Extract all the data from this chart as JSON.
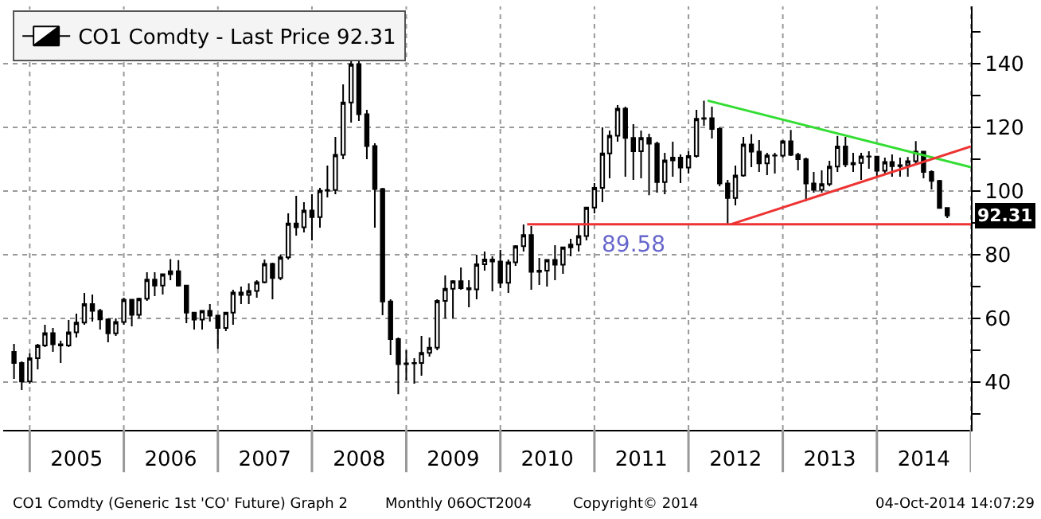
{
  "chart_data": {
    "type": "candlestick",
    "x": [
      "2004-11",
      "2004-12",
      "2005-01",
      "2005-02",
      "2005-03",
      "2005-04",
      "2005-05",
      "2005-06",
      "2005-07",
      "2005-08",
      "2005-09",
      "2005-10",
      "2005-11",
      "2005-12",
      "2006-01",
      "2006-02",
      "2006-03",
      "2006-04",
      "2006-05",
      "2006-06",
      "2006-07",
      "2006-08",
      "2006-09",
      "2006-10",
      "2006-11",
      "2006-12",
      "2007-01",
      "2007-02",
      "2007-03",
      "2007-04",
      "2007-05",
      "2007-06",
      "2007-07",
      "2007-08",
      "2007-09",
      "2007-10",
      "2007-11",
      "2007-12",
      "2008-01",
      "2008-02",
      "2008-03",
      "2008-04",
      "2008-05",
      "2008-06",
      "2008-07",
      "2008-08",
      "2008-09",
      "2008-10",
      "2008-11",
      "2008-12",
      "2009-01",
      "2009-02",
      "2009-03",
      "2009-04",
      "2009-05",
      "2009-06",
      "2009-07",
      "2009-08",
      "2009-09",
      "2009-10",
      "2009-11",
      "2009-12",
      "2010-01",
      "2010-02",
      "2010-03",
      "2010-04",
      "2010-05",
      "2010-06",
      "2010-07",
      "2010-08",
      "2010-09",
      "2010-10",
      "2010-11",
      "2010-12",
      "2011-01",
      "2011-02",
      "2011-03",
      "2011-04",
      "2011-05",
      "2011-06",
      "2011-07",
      "2011-08",
      "2011-09",
      "2011-10",
      "2011-11",
      "2011-12",
      "2012-01",
      "2012-02",
      "2012-03",
      "2012-04",
      "2012-05",
      "2012-06",
      "2012-07",
      "2012-08",
      "2012-09",
      "2012-10",
      "2012-11",
      "2012-12",
      "2013-01",
      "2013-02",
      "2013-03",
      "2013-04",
      "2013-05",
      "2013-06",
      "2013-07",
      "2013-08",
      "2013-09",
      "2013-10",
      "2013-11",
      "2013-12",
      "2014-01",
      "2014-02",
      "2014-03",
      "2014-04",
      "2014-05",
      "2014-06",
      "2014-07",
      "2014-08",
      "2014-09",
      "2014-10"
    ],
    "series": [
      {
        "name": "CO1 Comdty - Last Price 92.31",
        "color": "#000000",
        "ohlc": [
          [
            49.5,
            52,
            41,
            46
          ],
          [
            46,
            46.5,
            37.5,
            40.2
          ],
          [
            40.2,
            49,
            39.5,
            47.5
          ],
          [
            47.5,
            52,
            44,
            51.5
          ],
          [
            51.5,
            58,
            51,
            55.4
          ],
          [
            55.4,
            57,
            49.5,
            51.9
          ],
          [
            51.9,
            53,
            46,
            51.5
          ],
          [
            51.5,
            59.5,
            51,
            55.6
          ],
          [
            55.6,
            61.5,
            54,
            58.7
          ],
          [
            58.7,
            68,
            58,
            64.5
          ],
          [
            64.5,
            67.5,
            59,
            62.4
          ],
          [
            62.4,
            63,
            56.5,
            59.7
          ],
          [
            59.7,
            60,
            52.5,
            55.3
          ],
          [
            55.3,
            60,
            54.5,
            58.9
          ],
          [
            58.9,
            66.5,
            58,
            65.9
          ],
          [
            65.9,
            66,
            57.5,
            61.1
          ],
          [
            61.1,
            66.5,
            60,
            66.2
          ],
          [
            66.2,
            74.5,
            65.5,
            72.2
          ],
          [
            72.2,
            74.5,
            67,
            70.3
          ],
          [
            70.3,
            74,
            67.5,
            73.9
          ],
          [
            73.9,
            78.6,
            72,
            74.8
          ],
          [
            74.8,
            78.3,
            70,
            70.3
          ],
          [
            70.3,
            70.5,
            58.5,
            61.8
          ],
          [
            61.8,
            62,
            56.5,
            59.6
          ],
          [
            59.6,
            62.5,
            56.5,
            62.4
          ],
          [
            62.4,
            64.5,
            59,
            60.9
          ],
          [
            60.9,
            61,
            50.5,
            57
          ],
          [
            57,
            62,
            56,
            61.8
          ],
          [
            61.8,
            69,
            58,
            68.1
          ],
          [
            68.1,
            70,
            64.5,
            67.4
          ],
          [
            67.4,
            71,
            64.5,
            68.6
          ],
          [
            68.6,
            72,
            66.5,
            71.4
          ],
          [
            71.4,
            78.5,
            71,
            77.1
          ],
          [
            77.1,
            77.5,
            66,
            72.7
          ],
          [
            72.7,
            80,
            72,
            79.2
          ],
          [
            79.2,
            93,
            78.5,
            89.8
          ],
          [
            89.8,
            98.5,
            86,
            88.6
          ],
          [
            88.6,
            96.5,
            87,
            93.9
          ],
          [
            93.9,
            99,
            84.5,
            91.8
          ],
          [
            91.8,
            101,
            88.5,
            100.1
          ],
          [
            100.1,
            108,
            98,
            100.3
          ],
          [
            100.3,
            117,
            99,
            111.4
          ],
          [
            111.4,
            133.5,
            110,
            127.8
          ],
          [
            127.8,
            141,
            121.5,
            139.8
          ],
          [
            139.8,
            147.5,
            122,
            124.1
          ],
          [
            124.1,
            125.5,
            110,
            114.1
          ],
          [
            114.1,
            115,
            88.5,
            100.6
          ],
          [
            100.6,
            101,
            61,
            65.3
          ],
          [
            65.3,
            66,
            48.5,
            53.5
          ],
          [
            53.5,
            54,
            36.2,
            45.6
          ],
          [
            45.6,
            50,
            40.5,
            45.9
          ],
          [
            45.9,
            47.5,
            39.5,
            46
          ],
          [
            46,
            54.5,
            42,
            49.2
          ],
          [
            49.2,
            54,
            48,
            50.8
          ],
          [
            50.8,
            66,
            50,
            65.5
          ],
          [
            65.5,
            73.5,
            60,
            69.3
          ],
          [
            69.3,
            72,
            60,
            71.7
          ],
          [
            71.7,
            76,
            69,
            69.5
          ],
          [
            69.5,
            72,
            63.5,
            69.1
          ],
          [
            69.1,
            80,
            66,
            77
          ],
          [
            77,
            81,
            75,
            78.5
          ],
          [
            78.5,
            79.5,
            68.5,
            77.9
          ],
          [
            77.9,
            81.5,
            69.5,
            71.2
          ],
          [
            71.2,
            78.5,
            68,
            77.6
          ],
          [
            77.6,
            83,
            76.5,
            82.7
          ],
          [
            82.7,
            89.5,
            81,
            86.2
          ],
          [
            86.2,
            89,
            69,
            74.6
          ],
          [
            74.6,
            79,
            70.5,
            75
          ],
          [
            75,
            78.5,
            70,
            78.4
          ],
          [
            78.4,
            83,
            72,
            76.9
          ],
          [
            76.9,
            82.5,
            74,
            82.3
          ],
          [
            82.3,
            85,
            79.5,
            83.2
          ],
          [
            83.2,
            89.5,
            81,
            85.9
          ],
          [
            85.9,
            95,
            84.5,
            94.8
          ],
          [
            94.8,
            102.5,
            93,
            101
          ],
          [
            101,
            120,
            96.5,
            111.8
          ],
          [
            111.8,
            119,
            104,
            117.4
          ],
          [
            117.4,
            127,
            115.5,
            125.9
          ],
          [
            125.9,
            126.5,
            104.5,
            116.7
          ],
          [
            116.7,
            121,
            103.5,
            112.5
          ],
          [
            112.5,
            119,
            104,
            116.7
          ],
          [
            116.7,
            118,
            98.7,
            114.9
          ],
          [
            114.9,
            115.5,
            99.5,
            102.8
          ],
          [
            102.8,
            112,
            99,
            109.6
          ],
          [
            109.6,
            115.5,
            104.5,
            110.5
          ],
          [
            110.5,
            111.5,
            102.5,
            107.4
          ],
          [
            107.4,
            112.5,
            105.5,
            111
          ],
          [
            111,
            125.5,
            110.5,
            122.7
          ],
          [
            122.7,
            128.4,
            120.5,
            122.9
          ],
          [
            122.9,
            126.5,
            116.5,
            119.5
          ],
          [
            119.5,
            120,
            101.5,
            102.4
          ],
          [
            102.4,
            103.5,
            89.58,
            97.8
          ],
          [
            97.8,
            108,
            95.5,
            104.9
          ],
          [
            104.9,
            117,
            104.5,
            114.6
          ],
          [
            114.6,
            117.9,
            107.5,
            112.4
          ],
          [
            112.4,
            116,
            106,
            108.7
          ],
          [
            108.7,
            112,
            105,
            111.2
          ],
          [
            111.2,
            112,
            105.5,
            111.1
          ],
          [
            111.1,
            116,
            110.5,
            115.6
          ],
          [
            115.6,
            119.2,
            111,
            111.4
          ],
          [
            111.4,
            112,
            106.5,
            110
          ],
          [
            110,
            110.5,
            96.8,
            102.4
          ],
          [
            102.4,
            106,
            99.5,
            100.4
          ],
          [
            100.4,
            106.5,
            99.5,
            102.2
          ],
          [
            102.2,
            109.5,
            101.5,
            107.7
          ],
          [
            107.7,
            117.3,
            106,
            114
          ],
          [
            114,
            117,
            107.5,
            108.4
          ],
          [
            108.4,
            112,
            106,
            108.8
          ],
          [
            108.8,
            112,
            103.5,
            110.9
          ],
          [
            110.9,
            112.5,
            107,
            110.8
          ],
          [
            110.8,
            111,
            104.5,
            106.4
          ],
          [
            106.4,
            110.5,
            105.5,
            109.1
          ],
          [
            109.1,
            111.5,
            104.5,
            107.8
          ],
          [
            107.8,
            110.5,
            104.5,
            108.1
          ],
          [
            108.1,
            110.7,
            104.5,
            109.4
          ],
          [
            109.4,
            115.7,
            108.5,
            112.4
          ],
          [
            112.4,
            112.5,
            104,
            106
          ],
          [
            106,
            106.5,
            100.5,
            103.2
          ],
          [
            103.2,
            103.5,
            94.5,
            94.7
          ],
          [
            94.7,
            94.8,
            91.5,
            92.31
          ]
        ]
      },
      {
        "type": "line",
        "color": "#33dd33",
        "x": [
          "2012-03-15",
          "2015-01-01"
        ],
        "values": [
          128.4,
          107.5
        ]
      },
      {
        "type": "line",
        "color": "#ee3333",
        "x": [
          "2012-06-15",
          "2015-01-01"
        ],
        "values": [
          89.58,
          114
        ]
      },
      {
        "type": "line",
        "color": "#ee3333",
        "x": [
          "2010-04-15",
          "2015-01-01"
        ],
        "values": [
          89.58,
          89.58
        ]
      }
    ],
    "xlim": [
      "2004-09-20",
      "2015-01-01"
    ],
    "xticks": [
      {
        "value": "2005-01-01",
        "label": null
      },
      {
        "value": "2005-07-02",
        "label": "2005"
      },
      {
        "value": "2006-01-01",
        "label": null
      },
      {
        "value": "2006-07-02",
        "label": "2006"
      },
      {
        "value": "2007-01-01",
        "label": null
      },
      {
        "value": "2007-07-02",
        "label": "2007"
      },
      {
        "value": "2008-01-01",
        "label": null
      },
      {
        "value": "2008-07-02",
        "label": "2008"
      },
      {
        "value": "2009-01-01",
        "label": null
      },
      {
        "value": "2009-07-02",
        "label": "2009"
      },
      {
        "value": "2010-01-01",
        "label": null
      },
      {
        "value": "2010-07-02",
        "label": "2010"
      },
      {
        "value": "2011-01-01",
        "label": null
      },
      {
        "value": "2011-07-02",
        "label": "2011"
      },
      {
        "value": "2012-01-01",
        "label": null
      },
      {
        "value": "2012-07-02",
        "label": "2012"
      },
      {
        "value": "2013-01-01",
        "label": null
      },
      {
        "value": "2013-07-02",
        "label": "2013"
      },
      {
        "value": "2014-01-01",
        "label": null
      },
      {
        "value": "2014-07-02",
        "label": "2014"
      },
      {
        "value": "2015-01-01",
        "label": null
      }
    ],
    "ylim": [
      25,
      158
    ],
    "yticks": [
      {
        "value": 30,
        "label": null
      },
      40,
      {
        "value": 50,
        "label": null
      },
      60,
      {
        "value": 70,
        "label": null
      },
      80,
      {
        "value": 90,
        "label": null
      },
      100,
      {
        "value": 110,
        "label": null
      },
      120,
      {
        "value": 130,
        "label": null
      },
      140,
      {
        "value": 150,
        "label": null
      }
    ],
    "grid": true,
    "legend": "top left",
    "annotations": [
      {
        "text": "89.58",
        "x": "2011-06-01",
        "y": 89.58
      },
      "92.31",
      "CO1 Comdty (Generic 1st 'CO' Future) Graph 2",
      "Monthly 06OCT2004",
      "Copyright© 2014",
      "04-Oct-2014 14:07:29"
    ]
  }
}
